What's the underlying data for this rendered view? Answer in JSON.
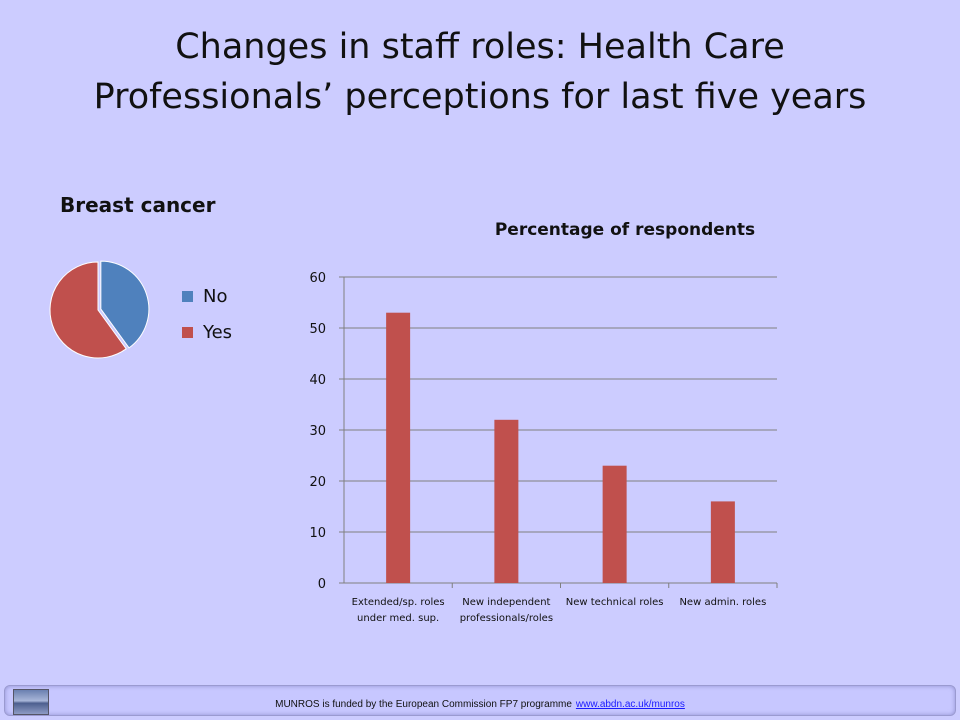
{
  "slide": {
    "title_line1": "Changes in staff roles: Health Care",
    "title_line2": "Professionals’  perceptions for last five years"
  },
  "footer": {
    "text": "MUNROS  is funded by the European Commission  FP7 programme",
    "url": "www.abdn.ac.uk/munros"
  },
  "chart_data": [
    {
      "type": "pie",
      "title": "Breast cancer",
      "categories": [
        "No",
        "Yes"
      ],
      "values": [
        40,
        60
      ],
      "colors": [
        "#4f81bd",
        "#c0504d"
      ],
      "legend": "right"
    },
    {
      "type": "bar",
      "title": "Percentage of respondents",
      "categories": [
        [
          "Extended/sp. roles",
          "under med. sup."
        ],
        [
          "New independent",
          "professionals/roles"
        ],
        [
          "New technical roles"
        ],
        [
          "New admin. roles"
        ]
      ],
      "values": [
        53,
        32,
        23,
        16
      ],
      "ylim": [
        0,
        60
      ],
      "yticks": [
        0,
        10,
        20,
        30,
        40,
        50,
        60
      ],
      "grid": true,
      "color": "#c0504d"
    }
  ]
}
